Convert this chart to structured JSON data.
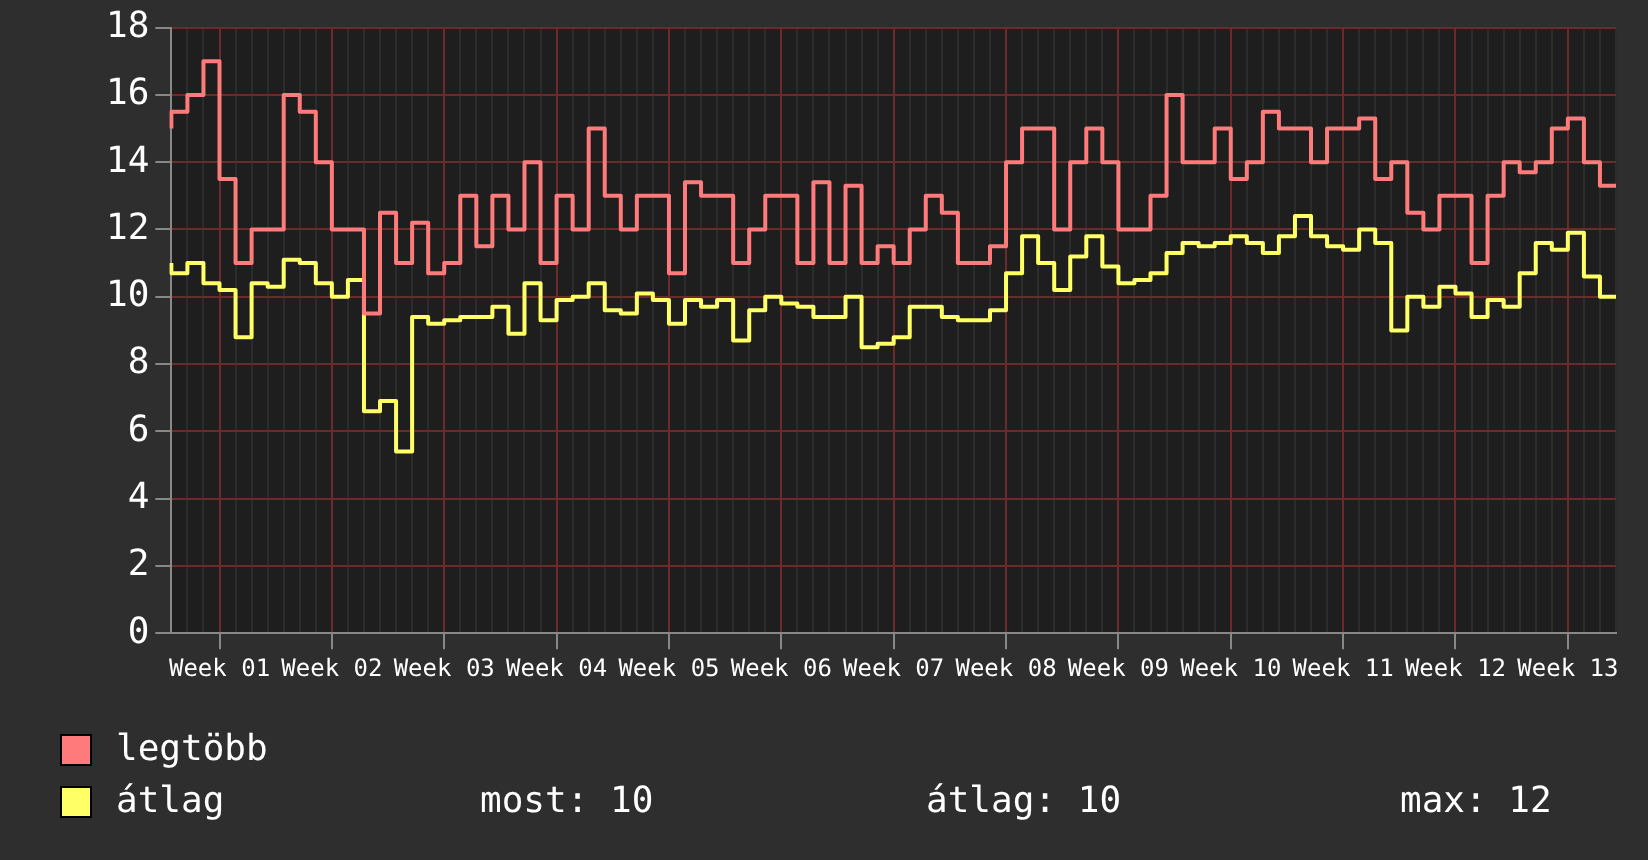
{
  "chart_data": {
    "type": "step",
    "ylim": [
      0,
      18
    ],
    "yticks": [
      0,
      2,
      4,
      6,
      8,
      10,
      12,
      14,
      16,
      18
    ],
    "categories": [
      null,
      null,
      null,
      "Week 01",
      null,
      null,
      null,
      null,
      null,
      null,
      "Week 02",
      null,
      null,
      null,
      null,
      null,
      null,
      "Week 03",
      null,
      null,
      null,
      null,
      null,
      null,
      "Week 04",
      null,
      null,
      null,
      null,
      null,
      null,
      "Week 05",
      null,
      null,
      null,
      null,
      null,
      null,
      "Week 06",
      null,
      null,
      null,
      null,
      null,
      null,
      "Week 07",
      null,
      null,
      null,
      null,
      null,
      null,
      "Week 08",
      null,
      null,
      null,
      null,
      null,
      null,
      "Week 09",
      null,
      null,
      null,
      null,
      null,
      null,
      "Week 10",
      null,
      null,
      null,
      null,
      null,
      null,
      "Week 11",
      null,
      null,
      null,
      null,
      null,
      null,
      "Week 12",
      null,
      null,
      null,
      null,
      null,
      null,
      "Week 13",
      null,
      null,
      null
    ],
    "grid": true,
    "legend": "bottom left",
    "annotations": [
      "most: 10",
      "átlag: 10",
      "max: 12"
    ],
    "series": [
      {
        "name": "legtöbb",
        "color": "#ff7b7b",
        "values": [
          15,
          15.5,
          16,
          17,
          13.5,
          11,
          12,
          12,
          16,
          15.5,
          14,
          12,
          12,
          9.5,
          12.5,
          11,
          12.2,
          10.7,
          11,
          13,
          11.5,
          13,
          12,
          14,
          11,
          13,
          12,
          15,
          13,
          12,
          13,
          13,
          10.7,
          13.4,
          13,
          13,
          11,
          12,
          13,
          13,
          11,
          13.4,
          11,
          13.3,
          11,
          11.5,
          11,
          12,
          13,
          12.5,
          11,
          11,
          11.5,
          14,
          15,
          15,
          12,
          14,
          15,
          14,
          12,
          12,
          13,
          16,
          14,
          14,
          15,
          13.5,
          14,
          15.5,
          15,
          15,
          14,
          15,
          15,
          15.3,
          13.5,
          14,
          12.5,
          12,
          13,
          13,
          11,
          13,
          14,
          13.7,
          14,
          15,
          15.3,
          14,
          13.3
        ]
      },
      {
        "name": "átlag",
        "color": "#ffff66",
        "values": [
          11,
          10.7,
          11,
          10.4,
          10.2,
          8.8,
          10.4,
          10.3,
          11.1,
          11,
          10.4,
          10,
          10.5,
          6.6,
          6.9,
          5.4,
          9.4,
          9.2,
          9.3,
          9.4,
          9.4,
          9.7,
          8.9,
          10.4,
          9.3,
          9.9,
          10,
          10.4,
          9.6,
          9.5,
          10.1,
          9.9,
          9.2,
          9.9,
          9.7,
          9.9,
          8.7,
          9.6,
          10,
          9.8,
          9.7,
          9.4,
          9.4,
          10,
          8.5,
          8.6,
          8.8,
          9.7,
          9.7,
          9.4,
          9.3,
          9.3,
          9.6,
          10.7,
          11.8,
          11,
          10.2,
          11.2,
          11.8,
          10.9,
          10.4,
          10.5,
          10.7,
          11.3,
          11.6,
          11.5,
          11.6,
          11.8,
          11.6,
          11.3,
          11.8,
          12.4,
          11.8,
          11.5,
          11.4,
          12,
          11.6,
          9,
          10,
          9.7,
          10.3,
          10.1,
          9.4,
          9.9,
          9.7,
          10.7,
          11.6,
          11.4,
          11.9,
          10.6,
          10
        ]
      }
    ]
  }
}
